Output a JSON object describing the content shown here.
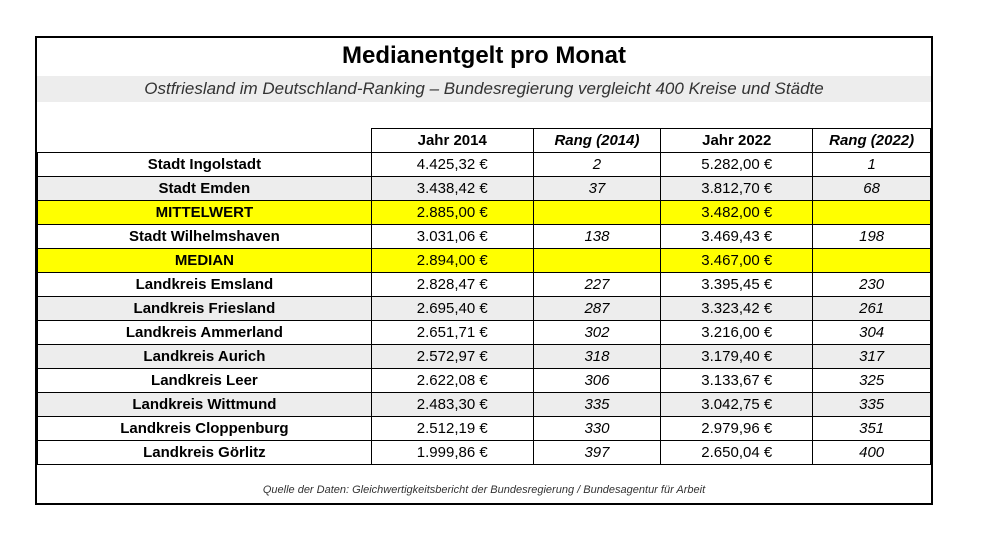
{
  "title": "Medianentgelt pro Monat",
  "subtitle": "Ostfriesland im Deutschland-Ranking – Bundesregierung vergleicht 400 Kreise und Städte",
  "columns": [
    "",
    "Jahr 2014",
    "Rang (2014)",
    "Jahr 2022",
    "Rang (2022)"
  ],
  "rows": [
    {
      "name": "Stadt Ingolstadt",
      "v2014": "4.425,32 €",
      "r2014": "2",
      "v2022": "5.282,00 €",
      "r2022": "1",
      "style": "plain"
    },
    {
      "name": "Stadt Emden",
      "v2014": "3.438,42 €",
      "r2014": "37",
      "v2022": "3.812,70 €",
      "r2022": "68",
      "style": "shade"
    },
    {
      "name": "MITTELWERT",
      "v2014": "2.885,00 €",
      "r2014": "",
      "v2022": "3.482,00 €",
      "r2022": "",
      "style": "highlight"
    },
    {
      "name": "Stadt Wilhelmshaven",
      "v2014": "3.031,06 €",
      "r2014": "138",
      "v2022": "3.469,43 €",
      "r2022": "198",
      "style": "plain"
    },
    {
      "name": "MEDIAN",
      "v2014": "2.894,00 €",
      "r2014": "",
      "v2022": "3.467,00 €",
      "r2022": "",
      "style": "highlight"
    },
    {
      "name": "Landkreis Emsland",
      "v2014": "2.828,47 €",
      "r2014": "227",
      "v2022": "3.395,45 €",
      "r2022": "230",
      "style": "plain"
    },
    {
      "name": "Landkreis Friesland",
      "v2014": "2.695,40 €",
      "r2014": "287",
      "v2022": "3.323,42 €",
      "r2022": "261",
      "style": "shade"
    },
    {
      "name": "Landkreis Ammerland",
      "v2014": "2.651,71 €",
      "r2014": "302",
      "v2022": "3.216,00 €",
      "r2022": "304",
      "style": "plain"
    },
    {
      "name": "Landkreis Aurich",
      "v2014": "2.572,97 €",
      "r2014": "318",
      "v2022": "3.179,40 €",
      "r2022": "317",
      "style": "shade"
    },
    {
      "name": "Landkreis Leer",
      "v2014": "2.622,08 €",
      "r2014": "306",
      "v2022": "3.133,67 €",
      "r2022": "325",
      "style": "plain"
    },
    {
      "name": "Landkreis Wittmund",
      "v2014": "2.483,30 €",
      "r2014": "335",
      "v2022": "3.042,75 €",
      "r2022": "335",
      "style": "shade"
    },
    {
      "name": "Landkreis Cloppenburg",
      "v2014": "2.512,19 €",
      "r2014": "330",
      "v2022": "2.979,96 €",
      "r2022": "351",
      "style": "plain"
    },
    {
      "name": "Landkreis Görlitz",
      "v2014": "1.999,86 €",
      "r2014": "397",
      "v2022": "2.650,04 €",
      "r2022": "400",
      "style": "plain"
    }
  ],
  "source": "Quelle der Daten: Gleichwertigkeitsbericht der Bundesregierung / Bundesagentur für Arbeit",
  "colors": {
    "highlight": "#ffff00",
    "shade": "#ededed"
  }
}
